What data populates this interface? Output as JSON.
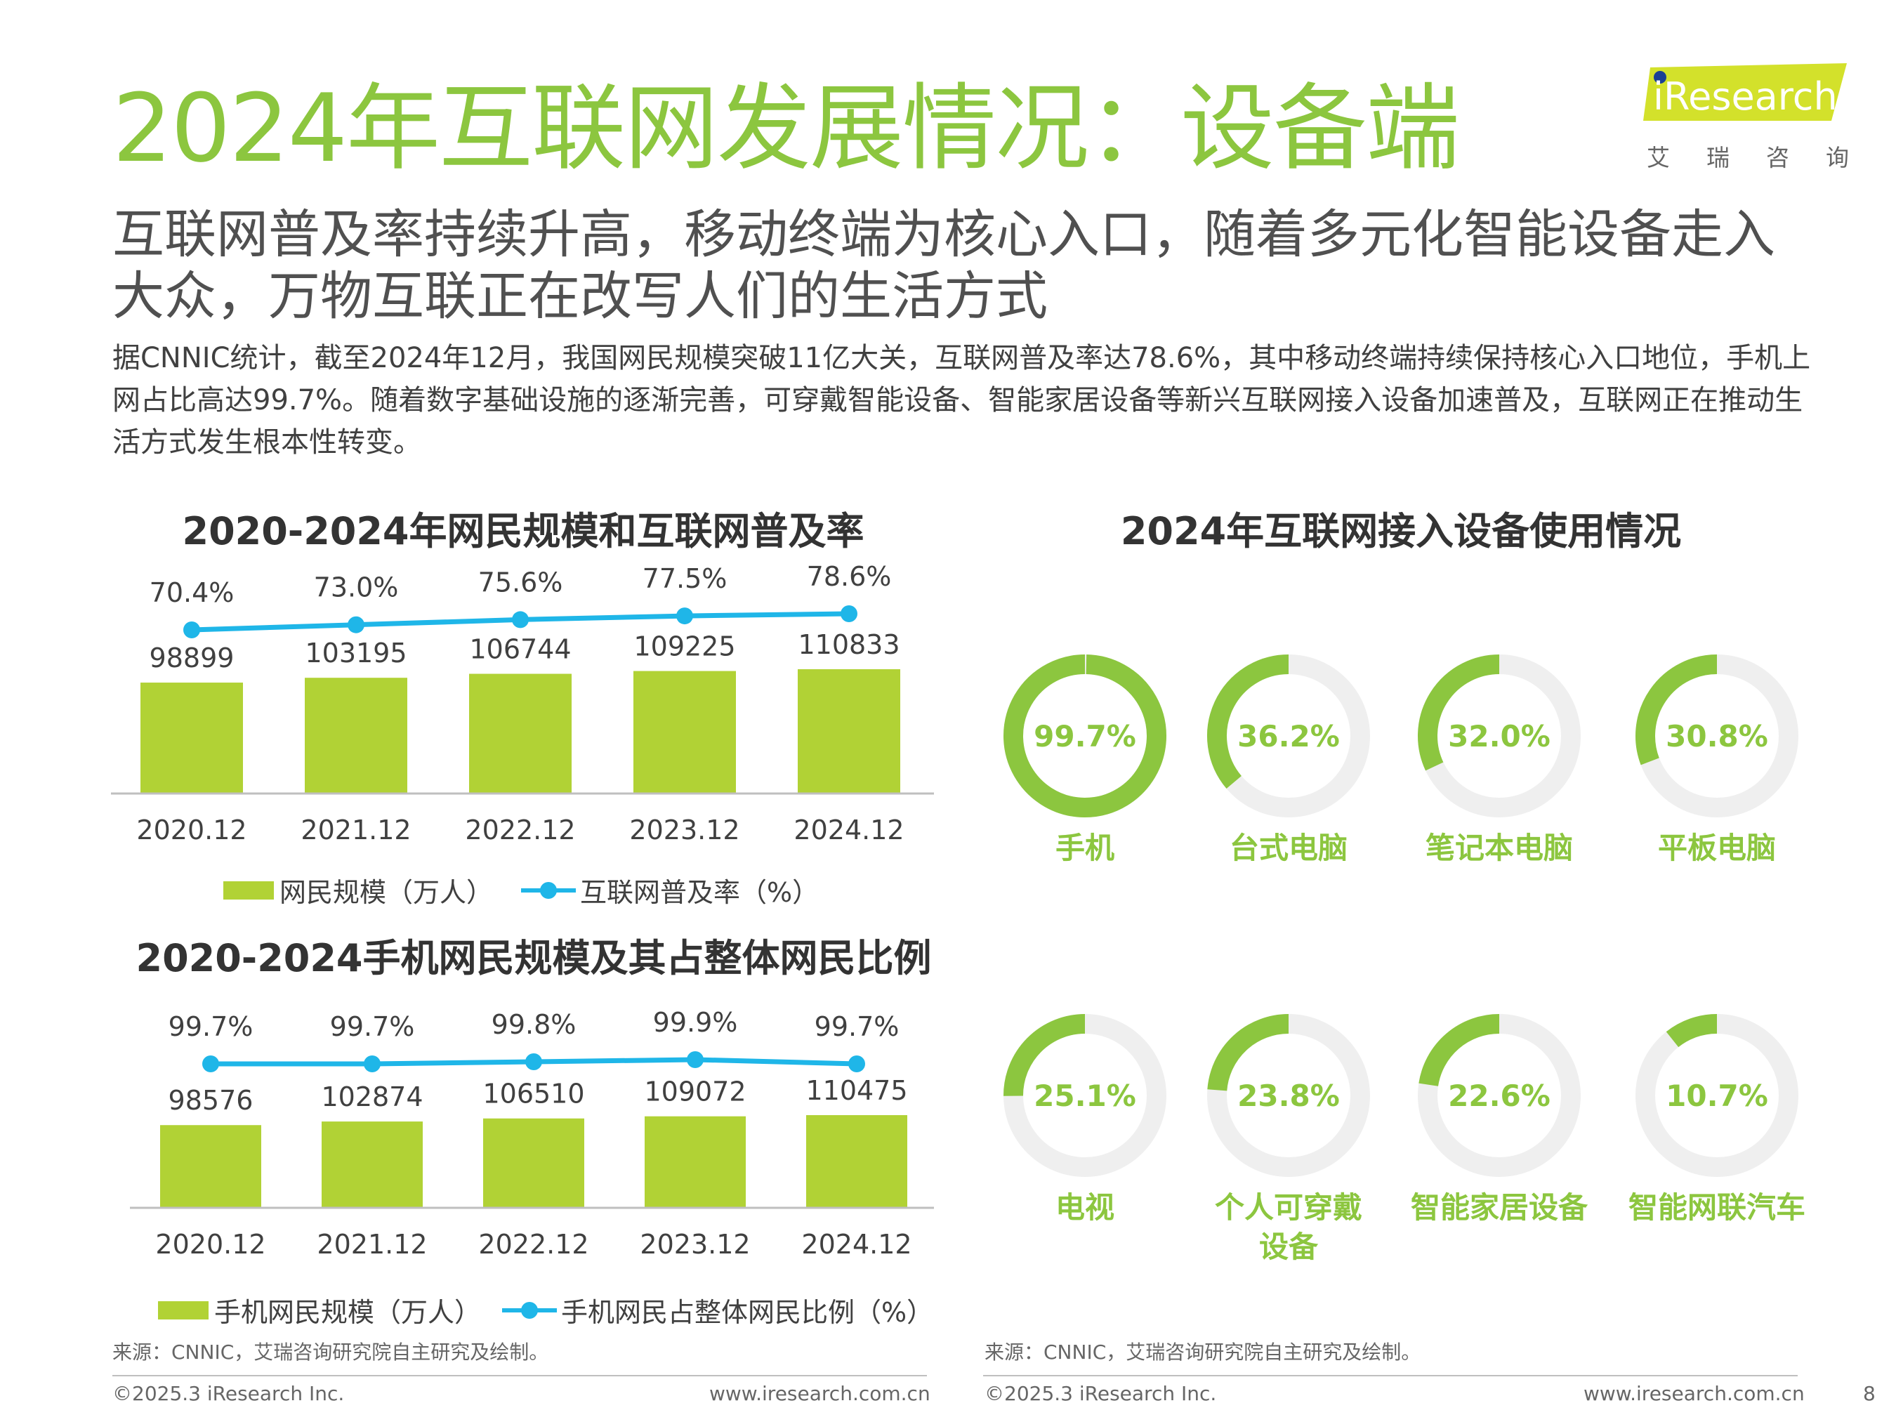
{
  "header": {
    "title": "2024年互联网发展情况：设备端",
    "subtitle": "互联网普及率持续升高，移动终端为核心入口，随着多元化智能设备走入大众，万物互联正在改写人们的生活方式",
    "body": "据CNNIC统计，截至2024年12月，我国网民规模突破11亿大关，互联网普及率达78.6%，其中移动终端持续保持核心入口地位，手机上网占比高达99.7%。随着数字基础设施的逐渐完善，可穿戴智能设备、智能家居设备等新兴互联网接入设备加速普及，互联网正在推动生活方式发生根本性转变。"
  },
  "logo": {
    "text": "iResearch",
    "cn": "艾瑞咨询",
    "i_dot_color": "#1a3f94",
    "bg_color": "#d3e12b"
  },
  "colors": {
    "title_green": "#8cc63f",
    "bar_green": "#b1d235",
    "line_blue": "#1fb6e8",
    "donut_track": "#efefef"
  },
  "chart_data": [
    {
      "type": "bar",
      "title": "2020-2024年网民规模和互联网普及率",
      "categories": [
        "2020.12",
        "2021.12",
        "2022.12",
        "2023.12",
        "2024.12"
      ],
      "series": [
        {
          "name": "网民规模（万人）",
          "type": "bar",
          "values": [
            98899,
            103195,
            106744,
            109225,
            110833
          ]
        },
        {
          "name": "互联网普及率（%）",
          "type": "line",
          "values": [
            70.4,
            73.0,
            75.6,
            77.5,
            78.6
          ],
          "labels": [
            "70.4%",
            "73.0%",
            "75.6%",
            "77.5%",
            "78.6%"
          ]
        }
      ],
      "bar_labels": [
        "98899",
        "103195",
        "106744",
        "109225",
        "110833"
      ],
      "legend": "bottom"
    },
    {
      "type": "bar",
      "title": "2020-2024手机网民规模及其占整体网民比例",
      "categories": [
        "2020.12",
        "2021.12",
        "2022.12",
        "2023.12",
        "2024.12"
      ],
      "series": [
        {
          "name": "手机网民规模（万人）",
          "type": "bar",
          "values": [
            98576,
            102874,
            106510,
            109072,
            110475
          ]
        },
        {
          "name": "手机网民占整体网民比例（%）",
          "type": "line",
          "values": [
            99.7,
            99.7,
            99.8,
            99.9,
            99.7
          ],
          "labels": [
            "99.7%",
            "99.7%",
            "99.8%",
            "99.9%",
            "99.7%"
          ]
        }
      ],
      "bar_labels": [
        "98576",
        "102874",
        "106510",
        "109072",
        "110475"
      ],
      "legend": "bottom"
    },
    {
      "type": "pie",
      "title": "2024年互联网接入设备使用情况",
      "items": [
        {
          "name": "手机",
          "value": 99.7,
          "label": "99.7%"
        },
        {
          "name": "台式电脑",
          "value": 36.2,
          "label": "36.2%"
        },
        {
          "name": "笔记本电脑",
          "value": 32.0,
          "label": "32.0%"
        },
        {
          "name": "平板电脑",
          "value": 30.8,
          "label": "30.8%"
        },
        {
          "name": "电视",
          "value": 25.1,
          "label": "25.1%"
        },
        {
          "name": "个人可穿戴设备",
          "value": 23.8,
          "label": "23.8%"
        },
        {
          "name": "智能家居设备",
          "value": 22.6,
          "label": "22.6%"
        },
        {
          "name": "智能网联汽车",
          "value": 10.7,
          "label": "10.7%"
        }
      ]
    }
  ],
  "footer": {
    "source_left": "来源：CNNIC，艾瑞咨询研究院自主研究及绘制。",
    "source_right": "来源：CNNIC，艾瑞咨询研究院自主研究及绘制。",
    "copyright_left": "©2025.3 iResearch Inc.",
    "url_left": "www.iresearch.com.cn",
    "copyright_right": "©2025.3 iResearch Inc.",
    "url_right": "www.iresearch.com.cn",
    "page_number": "8"
  }
}
